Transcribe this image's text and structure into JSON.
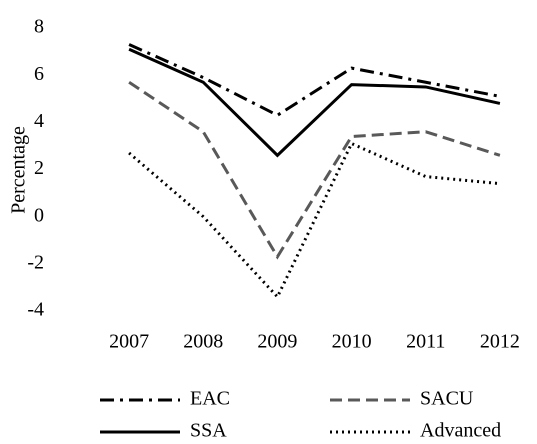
{
  "chart_data": {
    "type": "line",
    "y_label": "Percentage",
    "categories": [
      "2007",
      "2008",
      "2009",
      "2010",
      "2011",
      "2012"
    ],
    "series": [
      {
        "name": "EAC",
        "color": "#000000",
        "dash": "dashdot",
        "values": [
          7.3,
          5.9,
          4.3,
          6.3,
          5.7,
          5.1
        ]
      },
      {
        "name": "SACU",
        "color": "#595959",
        "dash": "dashed",
        "values": [
          5.7,
          3.6,
          -1.7,
          3.4,
          3.6,
          2.6
        ]
      },
      {
        "name": "SSA",
        "color": "#000000",
        "dash": "solid",
        "values": [
          7.1,
          5.7,
          2.6,
          5.6,
          5.5,
          4.8
        ]
      },
      {
        "name": "Advanced",
        "color": "#000000",
        "dash": "dotted",
        "values": [
          2.7,
          0.0,
          -3.4,
          3.1,
          1.7,
          1.4
        ]
      }
    ],
    "ylim": [
      -4,
      8
    ],
    "yticks": [
      -4,
      -2,
      0,
      2,
      4,
      6,
      8
    ],
    "grid": false,
    "legend": "bottom"
  }
}
